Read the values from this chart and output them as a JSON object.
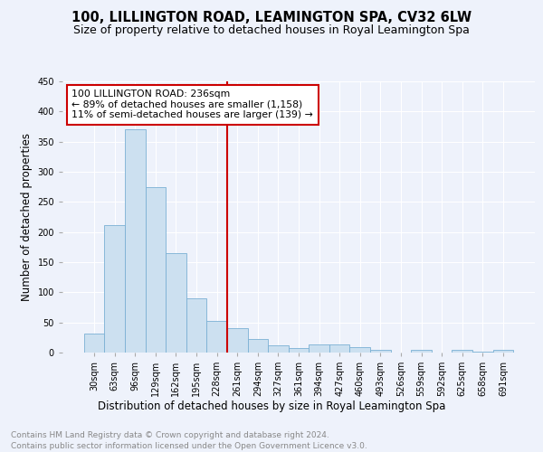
{
  "title": "100, LILLINGTON ROAD, LEAMINGTON SPA, CV32 6LW",
  "subtitle": "Size of property relative to detached houses in Royal Leamington Spa",
  "xlabel": "Distribution of detached houses by size in Royal Leamington Spa",
  "ylabel": "Number of detached properties",
  "footer_line1": "Contains HM Land Registry data © Crown copyright and database right 2024.",
  "footer_line2": "Contains public sector information licensed under the Open Government Licence v3.0.",
  "bar_labels": [
    "30sqm",
    "63sqm",
    "96sqm",
    "129sqm",
    "162sqm",
    "195sqm",
    "228sqm",
    "261sqm",
    "294sqm",
    "327sqm",
    "361sqm",
    "394sqm",
    "427sqm",
    "460sqm",
    "493sqm",
    "526sqm",
    "559sqm",
    "592sqm",
    "625sqm",
    "658sqm",
    "691sqm"
  ],
  "bar_values": [
    32,
    211,
    370,
    275,
    165,
    90,
    53,
    40,
    23,
    12,
    7,
    13,
    13,
    9,
    5,
    0,
    5,
    0,
    4,
    1,
    4
  ],
  "bar_color": "#cce0f0",
  "bar_edge_color": "#7ab0d4",
  "vline_color": "#cc0000",
  "annotation_text_line1": "100 LILLINGTON ROAD: 236sqm",
  "annotation_text_line2": "← 89% of detached houses are smaller (1,158)",
  "annotation_text_line3": "11% of semi-detached houses are larger (139) →",
  "annotation_box_color": "#ffffff",
  "annotation_box_edge": "#cc0000",
  "ylim": [
    0,
    450
  ],
  "yticks": [
    0,
    50,
    100,
    150,
    200,
    250,
    300,
    350,
    400,
    450
  ],
  "background_color": "#eef2fb",
  "grid_color": "#ffffff",
  "title_fontsize": 10.5,
  "subtitle_fontsize": 9,
  "xlabel_fontsize": 8.5,
  "ylabel_fontsize": 8.5,
  "tick_fontsize": 7,
  "annotation_fontsize": 7.8,
  "footer_fontsize": 6.5
}
